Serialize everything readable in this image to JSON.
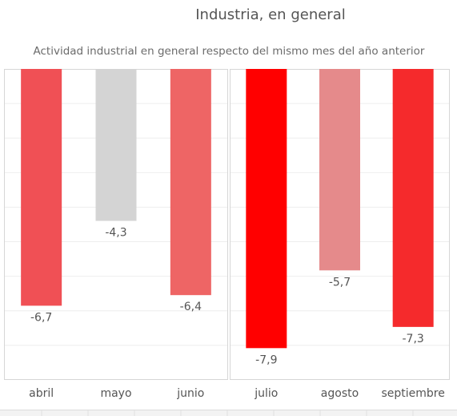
{
  "chart_data": {
    "type": "bar",
    "title": "Industria, en general",
    "subtitle": "Actividad industrial en general respecto del mismo mes del año anterior",
    "categories": [
      "abril",
      "mayo",
      "junio",
      "julio",
      "agosto",
      "septiembre"
    ],
    "values": [
      -6.7,
      -4.3,
      -6.4,
      -7.9,
      -5.7,
      -7.3
    ],
    "value_labels": [
      "-6,7",
      "-4,3",
      "-6,4",
      "-7,9",
      "-5,7",
      "-7,3"
    ],
    "bar_colors": [
      "#f05055",
      "#d4d4d4",
      "#ee6565",
      "#ff0000",
      "#e58a8b",
      "#f52a2c"
    ],
    "ylim": [
      -8.8,
      0
    ],
    "grid": true,
    "xlabel": "",
    "ylabel": ""
  }
}
